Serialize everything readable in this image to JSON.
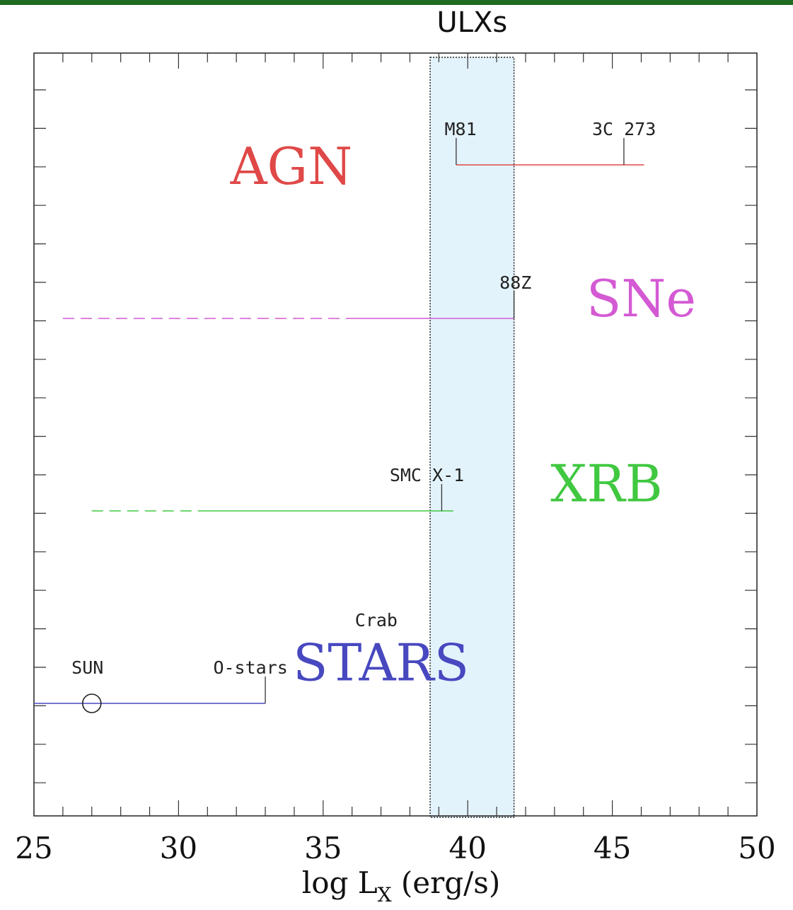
{
  "chart_data": {
    "type": "range",
    "title": "",
    "xlabel": "log L",
    "xlabel_sub": "X",
    "xlabel_unit": " (erg/s)",
    "xlim": [
      25,
      50
    ],
    "xticks": [
      25,
      30,
      35,
      40,
      45,
      50
    ],
    "xtick_labels": [
      "25",
      "30",
      "35",
      "40",
      "45",
      "50"
    ],
    "highlight_band": {
      "label": "ULXs",
      "x_range": [
        38.7,
        41.6
      ],
      "color": "#e3f3fc"
    },
    "classes": [
      {
        "name": "AGN",
        "color": "#e04848",
        "row": 3,
        "solid": [
          39.6,
          46.1
        ],
        "dashed": null,
        "label_x": 33.9,
        "label_row": 3.0
      },
      {
        "name": "SNe",
        "color": "#d45ad4",
        "row": 2,
        "solid": [
          36,
          41.6
        ],
        "dashed": [
          26,
          36
        ],
        "label_x": 46,
        "label_row": 2.0
      },
      {
        "name": "XRB",
        "color": "#40c840",
        "row": 1,
        "solid": [
          31,
          39.5
        ],
        "dashed": [
          27,
          31
        ],
        "label_x": 44.8,
        "label_row": 1.05
      },
      {
        "name": "STARS",
        "color": "#4848c0",
        "row": 0,
        "solid": [
          25,
          33
        ],
        "dashed": null,
        "label_x": 37,
        "label_row": 0.05
      }
    ],
    "sources": [
      {
        "name": "M81",
        "x": 39.6,
        "row": 3,
        "tick": true,
        "label_x": 39.2
      },
      {
        "name": "3C 273",
        "x": 45.4,
        "row": 3,
        "tick": true,
        "label_x": 44.3
      },
      {
        "name": "88Z",
        "x": 41.6,
        "row": 2,
        "tick": true,
        "label_x": 41.1
      },
      {
        "name": "SMC X-1",
        "x": 39.1,
        "row": 1,
        "tick": true,
        "label_x": 37.3
      },
      {
        "name": "Crab",
        "x": 36.9,
        "row": 0.45,
        "tick": false,
        "label_x": 36.1
      },
      {
        "name": "SUN",
        "x": 27,
        "row": 0,
        "tick": false,
        "circle": true,
        "label_x": 26.3
      },
      {
        "name": "O-stars",
        "x": 33,
        "row": 0,
        "tick": true,
        "label_x": 31.2
      }
    ]
  }
}
